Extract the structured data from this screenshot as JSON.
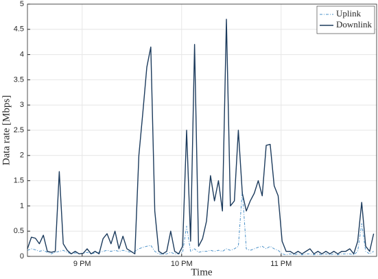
{
  "chart_data": {
    "type": "line",
    "x_label": "Time",
    "y_label": "Data rate [Mbps]",
    "x": [
      20.45,
      20.49,
      20.53,
      20.57,
      20.61,
      20.65,
      20.69,
      20.73,
      20.77,
      20.81,
      20.85,
      20.89,
      20.93,
      20.97,
      21.01,
      21.05,
      21.09,
      21.13,
      21.17,
      21.21,
      21.25,
      21.29,
      21.33,
      21.37,
      21.41,
      21.45,
      21.49,
      21.53,
      21.57,
      21.61,
      21.65,
      21.69,
      21.73,
      21.77,
      21.81,
      21.85,
      21.89,
      21.93,
      21.97,
      22.01,
      22.05,
      22.09,
      22.13,
      22.17,
      22.21,
      22.25,
      22.29,
      22.33,
      22.37,
      22.41,
      22.45,
      22.49,
      22.53,
      22.57,
      22.61,
      22.65,
      22.69,
      22.73,
      22.77,
      22.81,
      22.85,
      22.89,
      22.93,
      22.97,
      23.01,
      23.05,
      23.09,
      23.13,
      23.17,
      23.21,
      23.25,
      23.29,
      23.33,
      23.37,
      23.41,
      23.45,
      23.49,
      23.53,
      23.57,
      23.61,
      23.65,
      23.69,
      23.73,
      23.77,
      23.81,
      23.85,
      23.89,
      23.93
    ],
    "series": [
      {
        "name": "Uplink",
        "color": "#4a90c8",
        "dash": true,
        "values": [
          0.12,
          0.15,
          0.13,
          0.1,
          0.12,
          0.08,
          0.05,
          0.08,
          0.1,
          0.12,
          0.08,
          0.05,
          0.07,
          0.05,
          0.06,
          0.08,
          0.05,
          0.07,
          0.08,
          0.1,
          0.12,
          0.1,
          0.12,
          0.1,
          0.12,
          0.1,
          0.08,
          0.1,
          0.15,
          0.18,
          0.2,
          0.22,
          0.1,
          0.05,
          0.04,
          0.05,
          0.08,
          0.05,
          0.05,
          0.08,
          0.6,
          0.1,
          0.15,
          0.08,
          0.1,
          0.1,
          0.12,
          0.1,
          0.12,
          0.1,
          0.15,
          0.12,
          0.15,
          0.2,
          1.3,
          0.15,
          0.12,
          0.15,
          0.18,
          0.2,
          0.15,
          0.2,
          0.15,
          0.12,
          0.05,
          0.03,
          0.05,
          0.03,
          0.05,
          0.03,
          0.05,
          0.05,
          0.03,
          0.05,
          0.03,
          0.05,
          0.03,
          0.05,
          0.03,
          0.05,
          0.05,
          0.05,
          0.03,
          0.1,
          0.65,
          0.1,
          0.05,
          0.1
        ]
      },
      {
        "name": "Downlink",
        "color": "#1b3a5c",
        "dash": false,
        "values": [
          0.15,
          0.38,
          0.36,
          0.25,
          0.42,
          0.1,
          0.08,
          0.1,
          1.68,
          0.25,
          0.12,
          0.05,
          0.1,
          0.05,
          0.06,
          0.15,
          0.05,
          0.1,
          0.05,
          0.35,
          0.45,
          0.25,
          0.5,
          0.15,
          0.4,
          0.15,
          0.1,
          0.05,
          2.0,
          2.85,
          3.75,
          4.15,
          0.9,
          0.1,
          0.05,
          0.1,
          0.5,
          0.1,
          0.05,
          0.2,
          2.5,
          0.3,
          4.2,
          0.2,
          0.35,
          0.7,
          1.6,
          1.1,
          1.5,
          0.9,
          4.7,
          1.0,
          1.1,
          2.5,
          1.25,
          0.9,
          1.1,
          1.25,
          1.5,
          1.2,
          2.2,
          2.22,
          1.4,
          1.2,
          0.3,
          0.1,
          0.1,
          0.05,
          0.1,
          0.05,
          0.1,
          0.15,
          0.05,
          0.1,
          0.05,
          0.1,
          0.05,
          0.1,
          0.05,
          0.1,
          0.1,
          0.15,
          0.05,
          0.3,
          1.07,
          0.2,
          0.1,
          0.45
        ]
      }
    ],
    "xlim": [
      20.45,
      23.96
    ],
    "xticks": [
      {
        "value": 21,
        "label": "9 PM"
      },
      {
        "value": 22,
        "label": "10 PM"
      },
      {
        "value": 23,
        "label": "11 PM"
      }
    ],
    "ylim": [
      0,
      5
    ],
    "yticks": [
      0,
      0.5,
      1,
      1.5,
      2,
      2.5,
      3,
      3.5,
      4,
      4.5,
      5
    ],
    "grid": true,
    "legend": "upper right"
  }
}
